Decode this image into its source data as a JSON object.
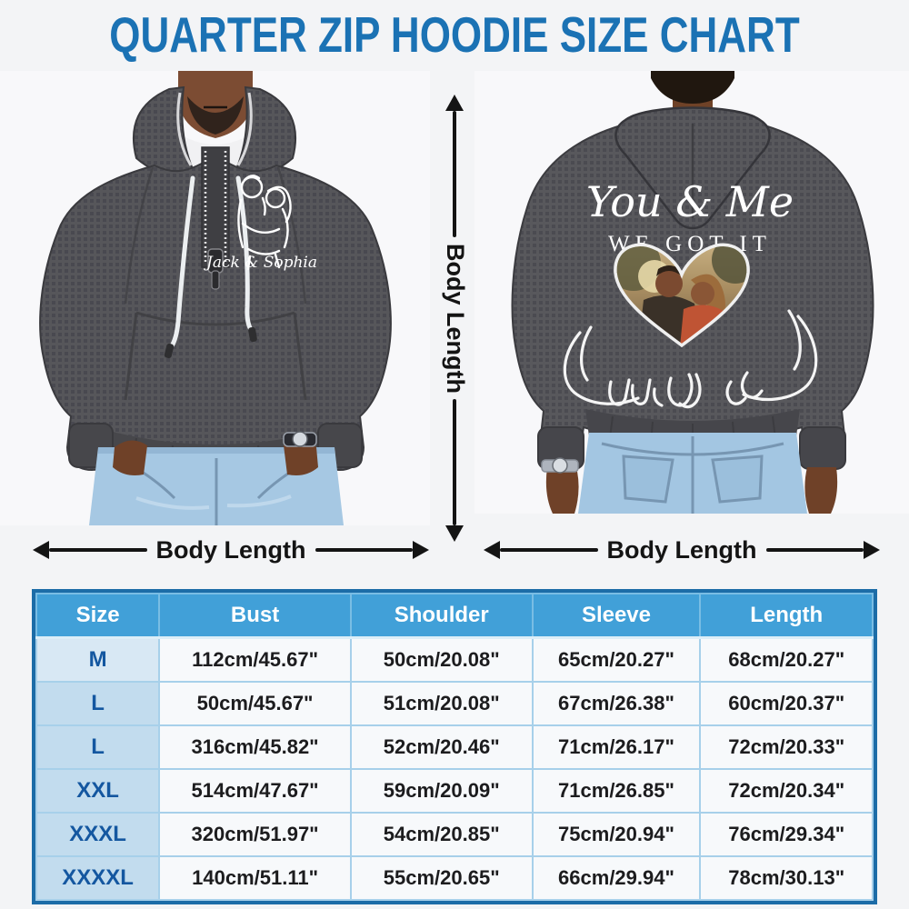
{
  "title": "QUARTER ZIP HOODIE SIZE CHART",
  "colors": {
    "title_blue": "#1b72b4",
    "table_header_blue": "#41a0d8",
    "size_column_blue": "#c2dcee",
    "size_text_blue": "#1457a0",
    "table_border_blue": "#1c6ca7",
    "arrow_black": "#141414",
    "hoodie_gray": "#56565a",
    "jeans_blue": "#a6c8e3"
  },
  "measurements": {
    "vertical_label": "Body Length",
    "front_width_label": "Body Length",
    "back_width_label": "Body Length"
  },
  "front_view": {
    "graphic_caption": "Jack & Sophia"
  },
  "back_view": {
    "print_line1": "You & Me",
    "print_line2": "WE GOT IT"
  },
  "chart_data": {
    "type": "table",
    "title": "QUARTER ZIP HOODIE SIZE CHART",
    "columns": [
      "Size",
      "Bust",
      "Shoulder",
      "Sleeve",
      "Length"
    ],
    "rows": [
      [
        "M",
        "112cm/45.67\"",
        "50cm/20.08\"",
        "65cm/20.27\"",
        "68cm/20.27\""
      ],
      [
        "L",
        "50cm/45.67\"",
        "51cm/20.08\"",
        "67cm/26.38\"",
        "60cm/20.37\""
      ],
      [
        "L",
        "316cm/45.82\"",
        "52cm/20.46\"",
        "71cm/26.17\"",
        "72cm/20.33\""
      ],
      [
        "XXL",
        "514cm/47.67\"",
        "59cm/20.09\"",
        "71cm/26.85\"",
        "72cm/20.34\""
      ],
      [
        "XXXL",
        "320cm/51.97\"",
        "54cm/20.85\"",
        "75cm/20.94\"",
        "76cm/29.34\""
      ],
      [
        "XXXXL",
        "140cm/51.11\"",
        "55cm/20.65\"",
        "66cm/29.94\"",
        "78cm/30.13\""
      ]
    ]
  }
}
